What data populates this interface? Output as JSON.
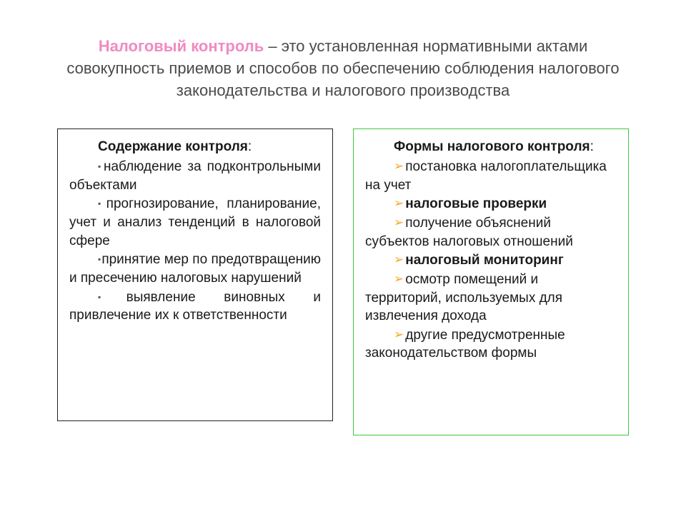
{
  "header": {
    "term": "Налоговый контроль",
    "rest": " – это установленная нормативными актами совокупность приемов и способов по обеспечению соблюдения налогового законодательства и налогового производства"
  },
  "left": {
    "title_bold": "Содержание контроля",
    "title_tail": ":",
    "items": [
      {
        "text": "наблюдение за подконтрольными объектами",
        "bold": false
      },
      {
        "text": "прогнозирование, планирование, учет и анализ тенденций в налоговой сфере",
        "bold": false
      },
      {
        "text": "принятие мер по предотвращению и пресечению налоговых нарушений",
        "bold": false
      },
      {
        "text": "выявление виновных и привлечение их к ответственности",
        "bold": false
      }
    ],
    "bullet_color": "#555555",
    "border_color": "#222222"
  },
  "right": {
    "title_bold": "Формы налогового контроля",
    "title_tail": ":",
    "items": [
      {
        "text": "постановка налогоплательщика на учет",
        "bold": false
      },
      {
        "text": "налоговые проверки",
        "bold": true
      },
      {
        "text": "получение объяснений субъектов налоговых отношений",
        "bold": false
      },
      {
        "text": "налоговый мониторинг",
        "bold": true
      },
      {
        "text": "осмотр помещений и территорий, используемых для извлечения дохода",
        "bold": false
      },
      {
        "text": "другие предусмотренные законодательством формы",
        "bold": false
      }
    ],
    "bullet_color": "#f6a623",
    "border_color": "#3cc93c"
  },
  "style": {
    "background": "#ffffff",
    "term_color": "#f08bc0",
    "body_font_size": 19,
    "header_font_size": 22,
    "text_color": "#1a1a1a",
    "header_text_color": "#4a4a4a"
  }
}
